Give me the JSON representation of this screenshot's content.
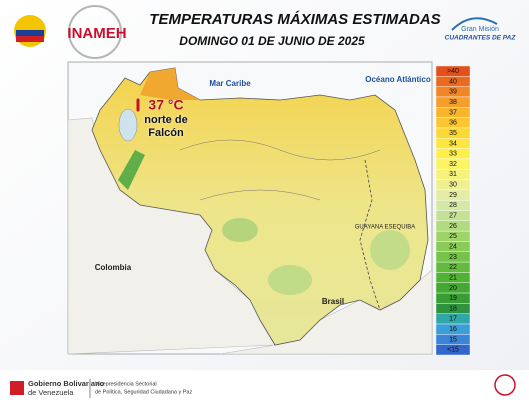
{
  "header": {
    "title": "TEMPERATURAS MÁXIMAS ESTIMADAS",
    "date": "DOMINGO 01 DE JUNIO DE 2025",
    "logo_left": "INAMEH",
    "logo_right_top": "Gran Misión",
    "logo_right_bottom": "CUADRANTES DE PAZ"
  },
  "map": {
    "labels": [
      "Mar Caribe",
      "Océano Atlántico",
      "Colombia",
      "Brasil",
      "GUAYANA ESEQUIBA"
    ],
    "highlight": {
      "value": "37 °C",
      "place": "norte de Falcón"
    }
  },
  "legend": {
    "items": [
      {
        "label": ">40",
        "color": "#e3501b"
      },
      {
        "label": "40",
        "color": "#ec6a20"
      },
      {
        "label": "39",
        "color": "#f28526"
      },
      {
        "label": "38",
        "color": "#f69e2b"
      },
      {
        "label": "37",
        "color": "#f9b42e"
      },
      {
        "label": "36",
        "color": "#fbc632"
      },
      {
        "label": "35",
        "color": "#fcd837"
      },
      {
        "label": "34",
        "color": "#fde63d"
      },
      {
        "label": "33",
        "color": "#fef04c"
      },
      {
        "label": "32",
        "color": "#fcf464"
      },
      {
        "label": "31",
        "color": "#f6f37c"
      },
      {
        "label": "30",
        "color": "#eef092"
      },
      {
        "label": "29",
        "color": "#e4eda3"
      },
      {
        "label": "28",
        "color": "#d6e8a6"
      },
      {
        "label": "27",
        "color": "#c4e295"
      },
      {
        "label": "26",
        "color": "#b1db7f"
      },
      {
        "label": "25",
        "color": "#9ed36a"
      },
      {
        "label": "24",
        "color": "#8acb57"
      },
      {
        "label": "23",
        "color": "#76c349"
      },
      {
        "label": "22",
        "color": "#63bb3e"
      },
      {
        "label": "21",
        "color": "#52b236"
      },
      {
        "label": "20",
        "color": "#44a832"
      },
      {
        "label": "19",
        "color": "#379d34"
      },
      {
        "label": "18",
        "color": "#2f933e"
      },
      {
        "label": "17",
        "color": "#2fa7a8"
      },
      {
        "label": "16",
        "color": "#3a9fd8"
      },
      {
        "label": "15",
        "color": "#3b84d6"
      },
      {
        "label": "<15",
        "color": "#3366cc"
      }
    ]
  },
  "footer": {
    "left_top": "Gobierno Bolivariano",
    "left_bottom": "de Venezuela",
    "right_top": "Vicepresidencia Sectorial",
    "right_bottom": "de Política, Seguridad Ciudadana y Paz"
  }
}
